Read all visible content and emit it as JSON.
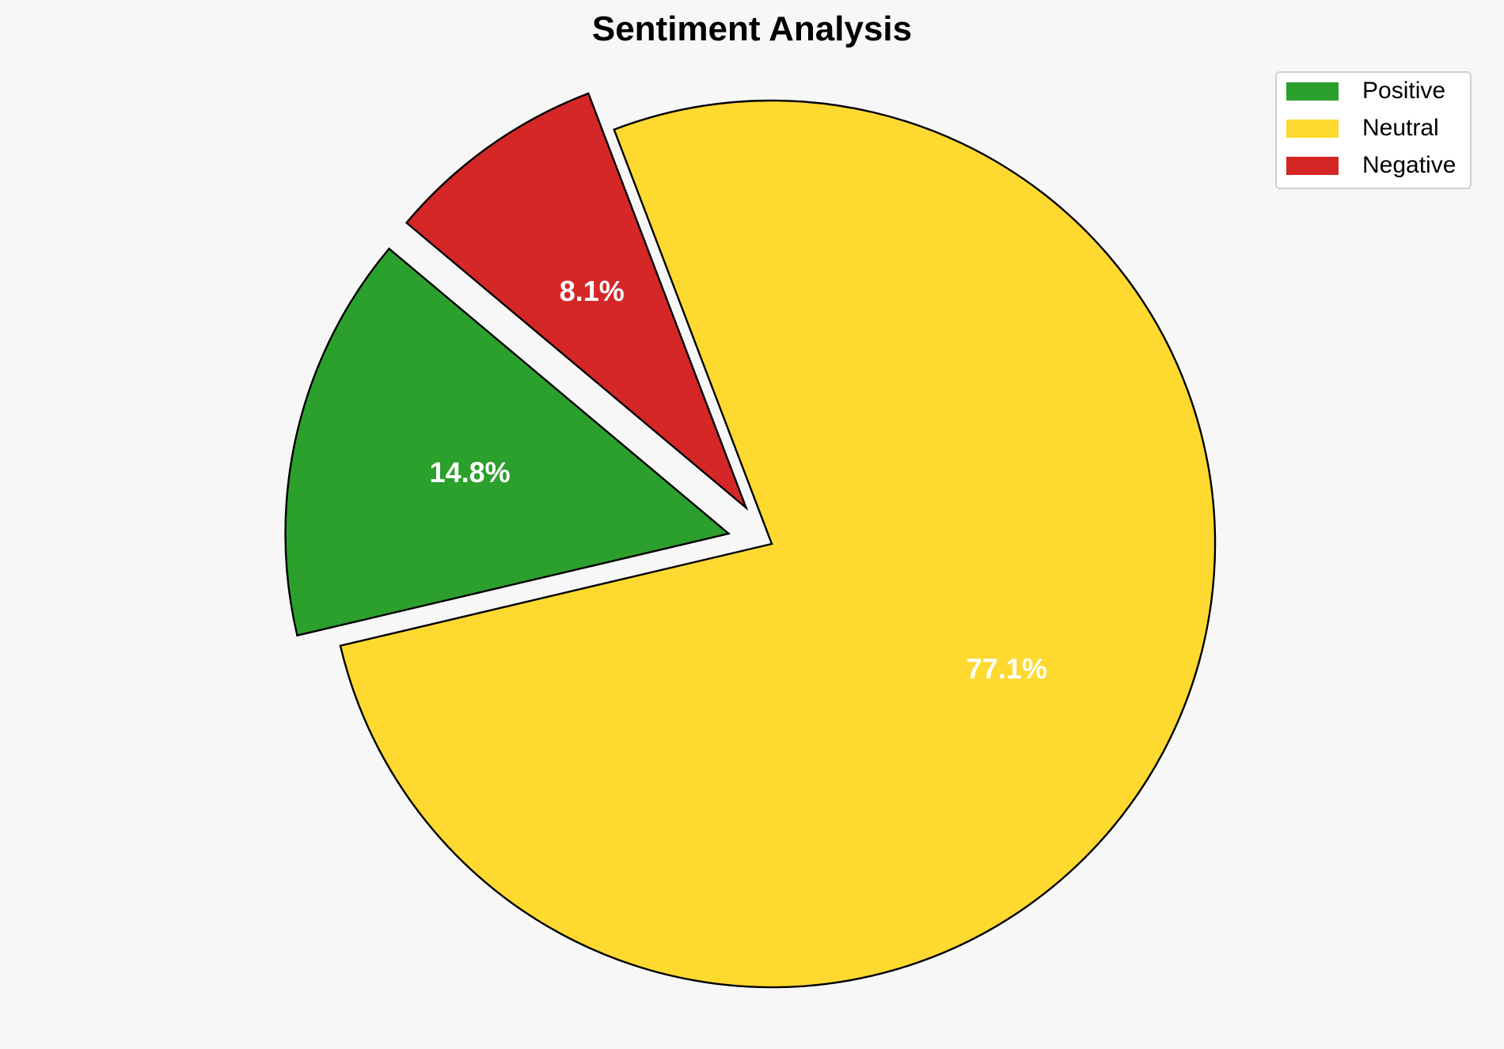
{
  "chart_data": {
    "type": "pie",
    "title": "Sentiment Analysis",
    "categories": [
      "Positive",
      "Neutral",
      "Negative"
    ],
    "values": [
      14.8,
      77.1,
      8.1
    ],
    "labels": [
      "14.8%",
      "77.1%",
      "8.1%"
    ],
    "colors": [
      "#2ca02c",
      "#fed930",
      "#d62728"
    ],
    "explode": [
      0.1,
      0,
      0.1
    ],
    "start_angle": 140,
    "direction": "counterclockwise",
    "legend_position": "top-right",
    "edge_color": "#000000"
  }
}
